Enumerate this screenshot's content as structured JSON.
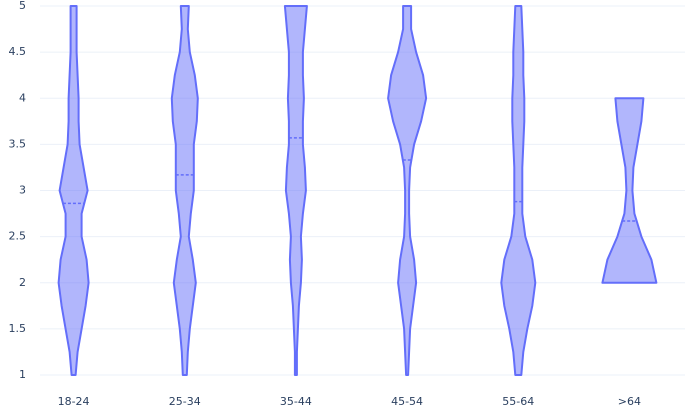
{
  "chart_data": {
    "type": "violin",
    "categories": [
      "18-24",
      "25-34",
      "35-44",
      "45-54",
      "55-64",
      ">64"
    ],
    "y_levels": [
      1,
      1.25,
      1.5,
      1.75,
      2,
      2.25,
      2.5,
      2.75,
      3,
      3.25,
      3.5,
      3.75,
      4,
      4.25,
      4.5,
      4.75,
      5
    ],
    "density": [
      [
        2,
        4,
        8,
        12,
        15,
        13,
        8,
        8,
        14,
        10,
        6,
        5,
        5,
        4,
        3,
        3,
        3
      ],
      [
        2,
        3,
        5,
        8,
        11,
        8,
        4,
        6,
        9,
        9,
        9,
        12,
        13,
        10,
        5,
        3,
        4
      ],
      [
        1,
        1,
        2,
        3,
        5,
        6,
        5,
        7,
        10,
        9,
        7,
        7,
        8,
        7,
        7,
        9,
        11
      ],
      [
        1,
        2,
        3,
        6,
        9,
        7,
        3,
        2,
        2,
        3,
        7,
        14,
        19,
        16,
        9,
        4,
        4
      ],
      [
        3,
        5,
        9,
        14,
        17,
        14,
        7,
        4,
        4,
        4,
        5,
        6,
        6,
        5,
        5,
        4,
        3
      ],
      [
        null,
        null,
        null,
        null,
        27,
        22,
        12,
        5,
        3,
        4,
        8,
        12,
        14,
        null,
        null,
        null,
        null
      ]
    ],
    "means": [
      2.86,
      3.17,
      3.57,
      3.33,
      2.88,
      2.67
    ],
    "color": "#636efa",
    "ylim": [
      1,
      5
    ],
    "yticks": [
      1,
      1.5,
      2,
      2.5,
      3,
      3.5,
      4,
      4.5,
      5
    ],
    "grid": true
  }
}
